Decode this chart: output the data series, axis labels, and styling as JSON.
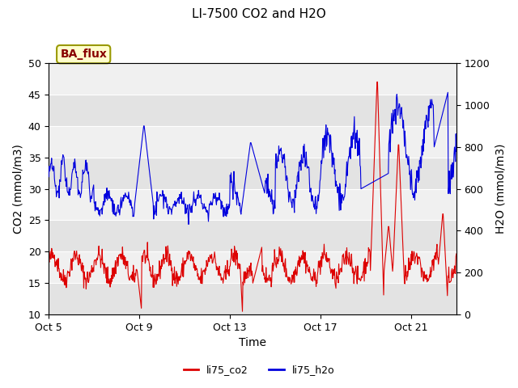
{
  "title": "LI-7500 CO2 and H2O",
  "xlabel": "Time",
  "ylabel_left": "CO2 (mmol/m3)",
  "ylabel_right": "H2O (mmol/m3)",
  "xlim_days": [
    0,
    18
  ],
  "ylim_left": [
    10,
    50
  ],
  "ylim_right": [
    0,
    1200
  ],
  "yticks_left": [
    10,
    15,
    20,
    25,
    30,
    35,
    40,
    45,
    50
  ],
  "yticks_right": [
    0,
    200,
    400,
    600,
    800,
    1000,
    1200
  ],
  "xtick_labels": [
    "Oct 5",
    "Oct 9",
    "Oct 13",
    "Oct 17",
    "Oct 21"
  ],
  "xtick_positions": [
    0,
    4,
    8,
    12,
    16
  ],
  "label_co2": "li75_co2",
  "label_h2o": "li75_h2o",
  "color_co2": "#dd0000",
  "color_h2o": "#0000dd",
  "bg_color": "#e8e8e8",
  "plot_bg": "#f0f0f0",
  "band_color": "#d8d8d8",
  "annotation_text": "BA_flux",
  "annotation_bg": "#ffffcc",
  "annotation_border": "#999900",
  "annotation_text_color": "#880000",
  "legend_dash": "-"
}
